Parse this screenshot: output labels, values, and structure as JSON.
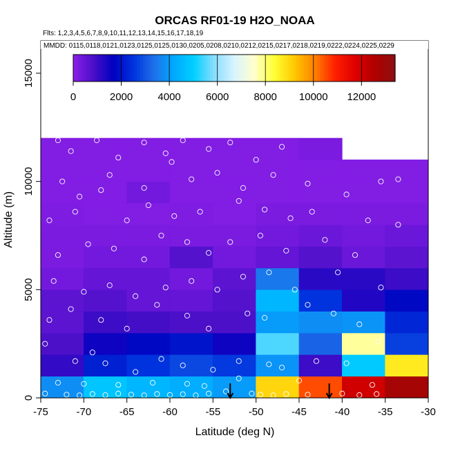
{
  "chart_data": {
    "type": "heatmap",
    "title": "ORCAS RF01-19 H2O_NOAA",
    "flights_label": "Flts: 1,2,3,4,5,6,7,8,9,10,11,12,13,14,15,16,17,18,19",
    "mmdd_label": "MMDD: 0115,0118,0121,0123,0125,0125,0130,0205,0208,0210,0212,0215,0217,0218,0219,0222,0224,0225,0229",
    "xlabel": "Latitude (deg N)",
    "ylabel": "Altitude (m)",
    "xlim": [
      -75,
      -30
    ],
    "ylim": [
      0,
      16500
    ],
    "x_ticks": [
      -75,
      -70,
      -65,
      -60,
      -55,
      -50,
      -45,
      -40,
      -35,
      -30
    ],
    "y_ticks": [
      0,
      5000,
      10000,
      15000
    ],
    "colorbar": {
      "min": 0,
      "max": 13400,
      "ticks": [
        0,
        2000,
        4000,
        6000,
        8000,
        10000,
        12000
      ],
      "colors": [
        "#8a1fe8",
        "#4a0fc8",
        "#0000c0",
        "#0033dd",
        "#1f6fe8",
        "#00a8ff",
        "#00d0ff",
        "#88ddff",
        "#d8f4ff",
        "#ffffcc",
        "#ffff33",
        "#ffc800",
        "#ff8000",
        "#ff2000",
        "#e00000",
        "#b00000",
        "#8a1010"
      ]
    },
    "bin_width_deg": 5,
    "cells": [
      {
        "lat": -75,
        "alt": 0,
        "h": 1000,
        "v": 3800
      },
      {
        "lat": -75,
        "alt": 1000,
        "h": 1000,
        "v": 1100
      },
      {
        "lat": -75,
        "alt": 2000,
        "h": 1000,
        "v": 800
      },
      {
        "lat": -75,
        "alt": 3000,
        "h": 1000,
        "v": 600
      },
      {
        "lat": -75,
        "alt": 4000,
        "h": 1000,
        "v": 600
      },
      {
        "lat": -75,
        "alt": 5000,
        "h": 1000,
        "v": 300
      },
      {
        "lat": -75,
        "alt": 6000,
        "h": 1000,
        "v": 200
      },
      {
        "lat": -75,
        "alt": 7000,
        "h": 1000,
        "v": 200
      },
      {
        "lat": -75,
        "alt": 8000,
        "h": 1000,
        "v": 150
      },
      {
        "lat": -75,
        "alt": 9000,
        "h": 1000,
        "v": 100
      },
      {
        "lat": -75,
        "alt": 10000,
        "h": 1000,
        "v": 100
      },
      {
        "lat": -75,
        "alt": 11000,
        "h": 1000,
        "v": 100
      },
      {
        "lat": -70,
        "alt": 0,
        "h": 1000,
        "v": 4800
      },
      {
        "lat": -70,
        "alt": 1000,
        "h": 1000,
        "v": 2200
      },
      {
        "lat": -70,
        "alt": 2000,
        "h": 1000,
        "v": 1500
      },
      {
        "lat": -70,
        "alt": 3000,
        "h": 1000,
        "v": 1000
      },
      {
        "lat": -70,
        "alt": 4000,
        "h": 1000,
        "v": 700
      },
      {
        "lat": -70,
        "alt": 5000,
        "h": 1000,
        "v": 500
      },
      {
        "lat": -70,
        "alt": 6000,
        "h": 1000,
        "v": 300
      },
      {
        "lat": -70,
        "alt": 7000,
        "h": 1000,
        "v": 200
      },
      {
        "lat": -70,
        "alt": 8000,
        "h": 1000,
        "v": 100
      },
      {
        "lat": -70,
        "alt": 9000,
        "h": 1000,
        "v": 100
      },
      {
        "lat": -70,
        "alt": 10000,
        "h": 1000,
        "v": 100
      },
      {
        "lat": -70,
        "alt": 11000,
        "h": 1000,
        "v": 100
      },
      {
        "lat": -65,
        "alt": 0,
        "h": 1000,
        "v": 4500
      },
      {
        "lat": -65,
        "alt": 1000,
        "h": 1000,
        "v": 2500
      },
      {
        "lat": -65,
        "alt": 2000,
        "h": 1000,
        "v": 1800
      },
      {
        "lat": -65,
        "alt": 3000,
        "h": 1000,
        "v": 900
      },
      {
        "lat": -65,
        "alt": 4000,
        "h": 1000,
        "v": 500
      },
      {
        "lat": -65,
        "alt": 5000,
        "h": 1000,
        "v": 500
      },
      {
        "lat": -65,
        "alt": 6000,
        "h": 1000,
        "v": 300
      },
      {
        "lat": -65,
        "alt": 7000,
        "h": 1000,
        "v": 200
      },
      {
        "lat": -65,
        "alt": 8000,
        "h": 1000,
        "v": 100
      },
      {
        "lat": -65,
        "alt": 9000,
        "h": 1000,
        "v": 300
      },
      {
        "lat": -65,
        "alt": 10000,
        "h": 1000,
        "v": 100
      },
      {
        "lat": -65,
        "alt": 11000,
        "h": 1000,
        "v": 100
      },
      {
        "lat": -60,
        "alt": 0,
        "h": 1000,
        "v": 4300
      },
      {
        "lat": -60,
        "alt": 1000,
        "h": 1000,
        "v": 2800
      },
      {
        "lat": -60,
        "alt": 2000,
        "h": 1000,
        "v": 2000
      },
      {
        "lat": -60,
        "alt": 3000,
        "h": 1000,
        "v": 800
      },
      {
        "lat": -60,
        "alt": 4000,
        "h": 1000,
        "v": 500
      },
      {
        "lat": -60,
        "alt": 5000,
        "h": 1000,
        "v": 300
      },
      {
        "lat": -60,
        "alt": 6000,
        "h": 1000,
        "v": 700
      },
      {
        "lat": -60,
        "alt": 7000,
        "h": 1000,
        "v": 200
      },
      {
        "lat": -60,
        "alt": 8000,
        "h": 1000,
        "v": 150
      },
      {
        "lat": -60,
        "alt": 9000,
        "h": 1000,
        "v": 100
      },
      {
        "lat": -60,
        "alt": 10000,
        "h": 1000,
        "v": 100
      },
      {
        "lat": -60,
        "alt": 11000,
        "h": 1000,
        "v": 100
      },
      {
        "lat": -55,
        "alt": 0,
        "h": 1000,
        "v": 4000
      },
      {
        "lat": -55,
        "alt": 1000,
        "h": 1000,
        "v": 2600
      },
      {
        "lat": -55,
        "alt": 2000,
        "h": 1000,
        "v": 1500
      },
      {
        "lat": -55,
        "alt": 3000,
        "h": 1000,
        "v": 800
      },
      {
        "lat": -55,
        "alt": 4000,
        "h": 1000,
        "v": 700
      },
      {
        "lat": -55,
        "alt": 5000,
        "h": 1000,
        "v": 600
      },
      {
        "lat": -55,
        "alt": 6000,
        "h": 1000,
        "v": 300
      },
      {
        "lat": -55,
        "alt": 7000,
        "h": 1000,
        "v": 200
      },
      {
        "lat": -55,
        "alt": 8000,
        "h": 1000,
        "v": 100
      },
      {
        "lat": -55,
        "alt": 9000,
        "h": 1000,
        "v": 100
      },
      {
        "lat": -55,
        "alt": 10000,
        "h": 1000,
        "v": 100
      },
      {
        "lat": -55,
        "alt": 11000,
        "h": 1000,
        "v": 100
      },
      {
        "lat": -50,
        "alt": 0,
        "h": 1000,
        "v": 9000
      },
      {
        "lat": -50,
        "alt": 1000,
        "h": 1000,
        "v": 3900
      },
      {
        "lat": -50,
        "alt": 2000,
        "h": 1000,
        "v": 5500
      },
      {
        "lat": -50,
        "alt": 3000,
        "h": 1000,
        "v": 4000
      },
      {
        "lat": -50,
        "alt": 4000,
        "h": 1000,
        "v": 4500
      },
      {
        "lat": -50,
        "alt": 5000,
        "h": 1000,
        "v": 3500
      },
      {
        "lat": -50,
        "alt": 6000,
        "h": 1000,
        "v": 500
      },
      {
        "lat": -50,
        "alt": 7000,
        "h": 1000,
        "v": 300
      },
      {
        "lat": -50,
        "alt": 8000,
        "h": 1000,
        "v": 200
      },
      {
        "lat": -50,
        "alt": 9000,
        "h": 1000,
        "v": 100
      },
      {
        "lat": -50,
        "alt": 10000,
        "h": 1000,
        "v": 100
      },
      {
        "lat": -50,
        "alt": 11000,
        "h": 1000,
        "v": 100
      },
      {
        "lat": -45,
        "alt": 0,
        "h": 1000,
        "v": 10500
      },
      {
        "lat": -45,
        "alt": 1000,
        "h": 1000,
        "v": 1000
      },
      {
        "lat": -45,
        "alt": 2000,
        "h": 1000,
        "v": 3200
      },
      {
        "lat": -45,
        "alt": 3000,
        "h": 1000,
        "v": 3800
      },
      {
        "lat": -45,
        "alt": 4000,
        "h": 1000,
        "v": 2500
      },
      {
        "lat": -45,
        "alt": 5000,
        "h": 1000,
        "v": 1200
      },
      {
        "lat": -45,
        "alt": 6000,
        "h": 1000,
        "v": 700
      },
      {
        "lat": -45,
        "alt": 7000,
        "h": 1000,
        "v": 400
      },
      {
        "lat": -45,
        "alt": 8000,
        "h": 1000,
        "v": 200
      },
      {
        "lat": -45,
        "alt": 9000,
        "h": 1000,
        "v": 100
      },
      {
        "lat": -45,
        "alt": 10000,
        "h": 1000,
        "v": 100
      },
      {
        "lat": -45,
        "alt": 11000,
        "h": 1000,
        "v": 200
      },
      {
        "lat": -40,
        "alt": 0,
        "h": 1000,
        "v": 12000
      },
      {
        "lat": -40,
        "alt": 1000,
        "h": 1000,
        "v": 4900
      },
      {
        "lat": -40,
        "alt": 2000,
        "h": 1000,
        "v": 7800
      },
      {
        "lat": -40,
        "alt": 3000,
        "h": 1000,
        "v": 3900
      },
      {
        "lat": -40,
        "alt": 4000,
        "h": 1000,
        "v": 1300
      },
      {
        "lat": -40,
        "alt": 5000,
        "h": 1000,
        "v": 1200
      },
      {
        "lat": -40,
        "alt": 6000,
        "h": 1000,
        "v": 400
      },
      {
        "lat": -40,
        "alt": 7000,
        "h": 1000,
        "v": 300
      },
      {
        "lat": -40,
        "alt": 8000,
        "h": 1000,
        "v": 200
      },
      {
        "lat": -40,
        "alt": 9000,
        "h": 1000,
        "v": 100
      },
      {
        "lat": -40,
        "alt": 10000,
        "h": 1000,
        "v": 100
      },
      {
        "lat": -35,
        "alt": 0,
        "h": 1000,
        "v": 12800
      },
      {
        "lat": -35,
        "alt": 1000,
        "h": 1000,
        "v": 8700
      },
      {
        "lat": -35,
        "alt": 2000,
        "h": 1000,
        "v": 2700
      },
      {
        "lat": -35,
        "alt": 3000,
        "h": 1000,
        "v": 2300
      },
      {
        "lat": -35,
        "alt": 4000,
        "h": 1000,
        "v": 1800
      },
      {
        "lat": -35,
        "alt": 5000,
        "h": 1000,
        "v": 1000
      },
      {
        "lat": -35,
        "alt": 6000,
        "h": 1000,
        "v": 600
      },
      {
        "lat": -35,
        "alt": 7000,
        "h": 1000,
        "v": 400
      },
      {
        "lat": -35,
        "alt": 8000,
        "h": 1000,
        "v": 200
      },
      {
        "lat": -35,
        "alt": 9000,
        "h": 1000,
        "v": 100
      },
      {
        "lat": -35,
        "alt": 10000,
        "h": 1000,
        "v": 100
      }
    ],
    "arrows_lat": [
      -53,
      -41.5
    ],
    "samples": [
      [
        -74.5,
        200
      ],
      [
        -72,
        150
      ],
      [
        -70.5,
        120
      ],
      [
        -69,
        180
      ],
      [
        -67.5,
        130
      ],
      [
        -66,
        200
      ],
      [
        -64.5,
        150
      ],
      [
        -63,
        120
      ],
      [
        -61.5,
        180
      ],
      [
        -60,
        140
      ],
      [
        -58.5,
        170
      ],
      [
        -57,
        120
      ],
      [
        -55.5,
        200
      ],
      [
        -53.5,
        300
      ],
      [
        -50.5,
        200
      ],
      [
        -49.5,
        150
      ],
      [
        -48,
        120
      ],
      [
        -46.5,
        180
      ],
      [
        -44,
        150
      ],
      [
        -40,
        200
      ],
      [
        -38,
        130
      ],
      [
        -36,
        180
      ],
      [
        -73,
        700
      ],
      [
        -70,
        650
      ],
      [
        -66,
        600
      ],
      [
        -62,
        700
      ],
      [
        -58,
        650
      ],
      [
        -56,
        550
      ],
      [
        -52,
        900
      ],
      [
        -45,
        800
      ],
      [
        -36.5,
        600
      ],
      [
        -74.5,
        2500
      ],
      [
        -71,
        1700
      ],
      [
        -69,
        2100
      ],
      [
        -67.5,
        1600
      ],
      [
        -64,
        1200
      ],
      [
        -61,
        1800
      ],
      [
        -58.5,
        1500
      ],
      [
        -55,
        1300
      ],
      [
        -52,
        1700
      ],
      [
        -48.5,
        1550
      ],
      [
        -47,
        1400
      ],
      [
        -43,
        1700
      ],
      [
        -39.5,
        1600
      ],
      [
        -35.8,
        2600
      ],
      [
        -74,
        3600
      ],
      [
        -71.5,
        4100
      ],
      [
        -68,
        3600
      ],
      [
        -65,
        3200
      ],
      [
        -61.5,
        4300
      ],
      [
        -58,
        3800
      ],
      [
        -55.5,
        3200
      ],
      [
        -51,
        3900
      ],
      [
        -49,
        3700
      ],
      [
        -44,
        4300
      ],
      [
        -41,
        3900
      ],
      [
        -38,
        3400
      ],
      [
        -73.5,
        5400
      ],
      [
        -70,
        4900
      ],
      [
        -67,
        5200
      ],
      [
        -64,
        4700
      ],
      [
        -60.5,
        5100
      ],
      [
        -57.5,
        5400
      ],
      [
        -54.5,
        5000
      ],
      [
        -51.5,
        5600
      ],
      [
        -48.5,
        5800
      ],
      [
        -45.5,
        5000
      ],
      [
        -40.5,
        5800
      ],
      [
        -35.5,
        5100
      ],
      [
        -73,
        6600
      ],
      [
        -69.5,
        7100
      ],
      [
        -66.5,
        6900
      ],
      [
        -63,
        6400
      ],
      [
        -61,
        7500
      ],
      [
        -58,
        7200
      ],
      [
        -55.5,
        6700
      ],
      [
        -53,
        7200
      ],
      [
        -49.5,
        7500
      ],
      [
        -46.5,
        6800
      ],
      [
        -42,
        7300
      ],
      [
        -38.5,
        6600
      ],
      [
        -74,
        8200
      ],
      [
        -71,
        8600
      ],
      [
        -68,
        9600
      ],
      [
        -65,
        8200
      ],
      [
        -62.5,
        8900
      ],
      [
        -59.5,
        8400
      ],
      [
        -56.5,
        8600
      ],
      [
        -52,
        9100
      ],
      [
        -49,
        8700
      ],
      [
        -46,
        8300
      ],
      [
        -43.5,
        8600
      ],
      [
        -37,
        8200
      ],
      [
        -33.5,
        8000
      ],
      [
        -72.5,
        10000
      ],
      [
        -70.5,
        9300
      ],
      [
        -67,
        10300
      ],
      [
        -63,
        9700
      ],
      [
        -59.8,
        10900
      ],
      [
        -57.5,
        10100
      ],
      [
        -54.5,
        10400
      ],
      [
        -51.5,
        9700
      ],
      [
        -48,
        10300
      ],
      [
        -44,
        9900
      ],
      [
        -39.5,
        9400
      ],
      [
        -35.5,
        10000
      ],
      [
        -33.5,
        10100
      ],
      [
        -73,
        11900
      ],
      [
        -71.5,
        11400
      ],
      [
        -68.5,
        11900
      ],
      [
        -66,
        11100
      ],
      [
        -63,
        11800
      ],
      [
        -60.5,
        11300
      ],
      [
        -58.5,
        11900
      ],
      [
        -55.5,
        11500
      ],
      [
        -53,
        11800
      ],
      [
        -50,
        11000
      ],
      [
        -47,
        11600
      ]
    ]
  }
}
